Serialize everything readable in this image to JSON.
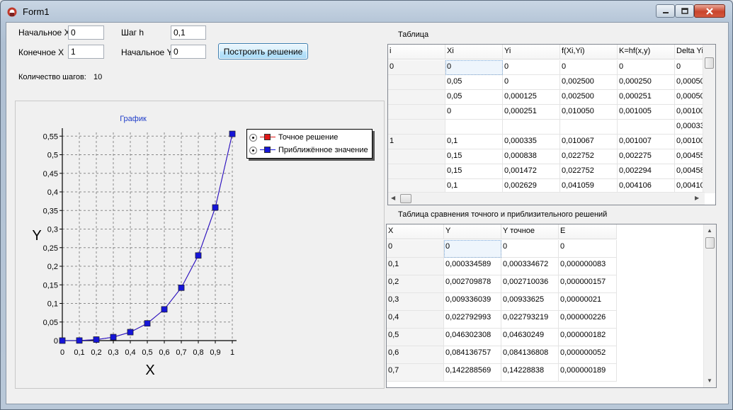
{
  "window": {
    "title": "Form1"
  },
  "controls": {
    "start_x_label": "Начальное X",
    "start_x_value": "0",
    "end_x_label": "Конечное X",
    "end_x_value": "1",
    "step_label": "Шаг h",
    "step_value": "0,1",
    "start_y_label": "Начальное Y",
    "start_y_value": "0",
    "build_button": "Построить решение",
    "steps_count_label": "Количество шагов:",
    "steps_count_value": "10"
  },
  "table1": {
    "title": "Таблица",
    "columns": [
      "i",
      "Xi",
      "Yi",
      "f(Xi,Yi)",
      "K=hf(x,y)",
      "Delta Yi"
    ],
    "rows": [
      [
        "0",
        "0",
        "0",
        "0",
        "0",
        "0"
      ],
      [
        "",
        "0,05",
        "0",
        "0,002500",
        "0,000250",
        "0,00050"
      ],
      [
        "",
        "0,05",
        "0,000125",
        "0,002500",
        "0,000251",
        "0,00050"
      ],
      [
        "",
        "0",
        "0,000251",
        "0,010050",
        "0,001005",
        "0,00100"
      ],
      [
        "",
        "",
        "",
        "",
        "",
        "0,00033"
      ],
      [
        "1",
        "0,1",
        "0,000335",
        "0,010067",
        "0,001007",
        "0,00100"
      ],
      [
        "",
        "0,15",
        "0,000838",
        "0,022752",
        "0,002275",
        "0,00455"
      ],
      [
        "",
        "0,15",
        "0,001472",
        "0,022752",
        "0,002294",
        "0,00458"
      ],
      [
        "",
        "0,1",
        "0,002629",
        "0,041059",
        "0,004106",
        "0,00410"
      ]
    ]
  },
  "table2": {
    "title": "Таблица сравнения точного и приблизительного решений",
    "columns": [
      "X",
      "Y",
      "Y точное",
      "E"
    ],
    "rows": [
      [
        "0",
        "0",
        "0",
        "0"
      ],
      [
        "0,1",
        "0,000334589",
        "0,000334672",
        "0,000000083"
      ],
      [
        "0,2",
        "0,002709878",
        "0,002710036",
        "0,000000157"
      ],
      [
        "0,3",
        "0,009336039",
        "0,00933625",
        "0,00000021"
      ],
      [
        "0,4",
        "0,022792993",
        "0,022793219",
        "0,000000226"
      ],
      [
        "0,5",
        "0,046302308",
        "0,04630249",
        "0,000000182"
      ],
      [
        "0,6",
        "0,084136757",
        "0,084136808",
        "0,000000052"
      ],
      [
        "0,7",
        "0,142288569",
        "0,14228838",
        "0,000000189"
      ]
    ]
  },
  "chart_data": {
    "type": "line",
    "title": "График",
    "xlabel": "X",
    "ylabel": "Y",
    "x": [
      0,
      0.1,
      0.2,
      0.3,
      0.4,
      0.5,
      0.6,
      0.7,
      0.8,
      0.9,
      1
    ],
    "x_tick_labels": [
      "0",
      "0,1",
      "0,2",
      "0,3",
      "0,4",
      "0,5",
      "0,6",
      "0,7",
      "0,8",
      "0,9",
      "1"
    ],
    "y_tick_values": [
      0,
      0.05,
      0.1,
      0.15,
      0.2,
      0.25,
      0.3,
      0.35,
      0.4,
      0.45,
      0.5,
      0.55
    ],
    "y_tick_labels": [
      "0",
      "0,05",
      "0,1",
      "0,15",
      "0,2",
      "0,25",
      "0,3",
      "0,35",
      "0,4",
      "0,45",
      "0,5",
      "0,55"
    ],
    "xlim": [
      0,
      1
    ],
    "ylim": [
      0,
      0.56
    ],
    "grid": true,
    "legend_position": "top-right",
    "series": [
      {
        "name": "Точное решение",
        "color": "#e01818",
        "values": [
          0,
          0.000335,
          0.00271,
          0.009336,
          0.022793,
          0.046302,
          0.084137,
          0.142288,
          0.229,
          0.358,
          0.556
        ]
      },
      {
        "name": "Приближённое значение",
        "color": "#1515d8",
        "values": [
          0,
          0.000335,
          0.00271,
          0.009336,
          0.022793,
          0.046302,
          0.084137,
          0.142289,
          0.229,
          0.358,
          0.556
        ]
      }
    ]
  },
  "colors": {
    "accent_button": "#3c7fb1",
    "chart_title": "#1e3cc8",
    "close_button": "#c9442b"
  },
  "icons": {
    "app": "app-icon",
    "minimize": "minimize-icon",
    "maximize": "maximize-icon",
    "close": "close-icon"
  }
}
